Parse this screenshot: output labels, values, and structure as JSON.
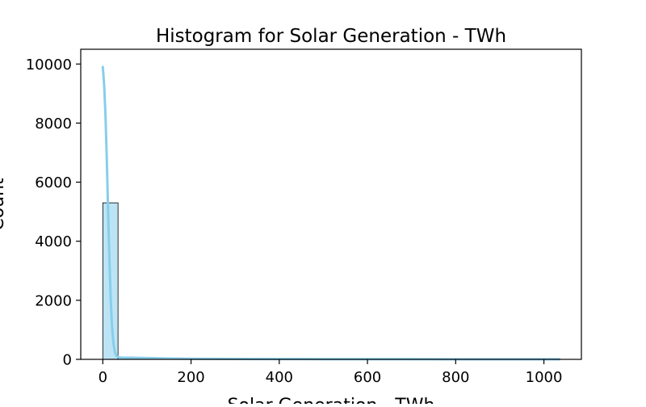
{
  "chart_data": {
    "type": "bar",
    "subtype": "histogram",
    "title": "Histogram for Solar Generation - TWh",
    "xlabel": "Solar Generation - TWh",
    "ylabel": "Count",
    "xlim": [
      -50,
      1085
    ],
    "ylim": [
      0,
      10500
    ],
    "xticks": [
      {
        "value": 0,
        "label": "0"
      },
      {
        "value": 200,
        "label": "200"
      },
      {
        "value": 400,
        "label": "400"
      },
      {
        "value": 600,
        "label": "600"
      },
      {
        "value": 800,
        "label": "800"
      },
      {
        "value": 1000,
        "label": "1000"
      }
    ],
    "yticks": [
      {
        "value": 0,
        "label": "0"
      },
      {
        "value": 2000,
        "label": "2000"
      },
      {
        "value": 4000,
        "label": "4000"
      },
      {
        "value": 6000,
        "label": "6000"
      },
      {
        "value": 8000,
        "label": "8000"
      },
      {
        "value": 10000,
        "label": "10000"
      }
    ],
    "bins": [
      {
        "x0": 0,
        "x1": 34.5,
        "count": 5300
      },
      {
        "x0": 34.5,
        "x1": 69,
        "count": 80
      },
      {
        "x0": 69,
        "x1": 103.5,
        "count": 45
      },
      {
        "x0": 103.5,
        "x1": 138,
        "count": 30
      },
      {
        "x0": 138,
        "x1": 172.5,
        "count": 20
      },
      {
        "x0": 172.5,
        "x1": 207,
        "count": 12
      },
      {
        "x0": 207,
        "x1": 241.5,
        "count": 10
      },
      {
        "x0": 241.5,
        "x1": 276,
        "count": 8
      },
      {
        "x0": 276,
        "x1": 310.5,
        "count": 7
      },
      {
        "x0": 310.5,
        "x1": 345,
        "count": 6
      },
      {
        "x0": 345,
        "x1": 379.5,
        "count": 5
      },
      {
        "x0": 379.5,
        "x1": 414,
        "count": 5
      },
      {
        "x0": 414,
        "x1": 448.5,
        "count": 4
      },
      {
        "x0": 448.5,
        "x1": 483,
        "count": 4
      },
      {
        "x0": 483,
        "x1": 517.5,
        "count": 3
      },
      {
        "x0": 517.5,
        "x1": 552,
        "count": 3
      },
      {
        "x0": 552,
        "x1": 586.5,
        "count": 3
      },
      {
        "x0": 586.5,
        "x1": 621,
        "count": 2
      },
      {
        "x0": 621,
        "x1": 655.5,
        "count": 2
      },
      {
        "x0": 655.5,
        "x1": 690,
        "count": 2
      },
      {
        "x0": 690,
        "x1": 724.5,
        "count": 2
      },
      {
        "x0": 724.5,
        "x1": 759,
        "count": 2
      },
      {
        "x0": 759,
        "x1": 793.5,
        "count": 1
      },
      {
        "x0": 793.5,
        "x1": 828,
        "count": 1
      },
      {
        "x0": 828,
        "x1": 862.5,
        "count": 1
      },
      {
        "x0": 862.5,
        "x1": 897,
        "count": 1
      },
      {
        "x0": 897,
        "x1": 931.5,
        "count": 1
      },
      {
        "x0": 931.5,
        "x1": 966,
        "count": 1
      },
      {
        "x0": 966,
        "x1": 1000.5,
        "count": 1
      },
      {
        "x0": 1000.5,
        "x1": 1035,
        "count": 1
      }
    ],
    "kde": {
      "x": [
        0,
        3,
        6,
        9,
        12,
        15,
        18,
        21,
        24,
        27,
        30,
        33,
        36,
        40,
        45,
        50,
        60,
        70,
        80,
        100,
        130,
        160,
        200,
        250,
        300,
        400,
        500,
        600,
        700,
        800,
        900,
        1000,
        1035
      ],
      "y": [
        9900,
        9300,
        8300,
        6800,
        5000,
        3400,
        2000,
        1100,
        560,
        270,
        140,
        90,
        70,
        62,
        58,
        56,
        54,
        52,
        50,
        44,
        34,
        27,
        20,
        16,
        13,
        10,
        8,
        7,
        6,
        5,
        5,
        4,
        4
      ]
    },
    "colors": {
      "bar_fill": "#87ceeb",
      "bar_fill_opacity": 0.55,
      "bar_edge": "#000000",
      "kde_line": "#87ceeb"
    },
    "grid": false,
    "legend": "none"
  }
}
